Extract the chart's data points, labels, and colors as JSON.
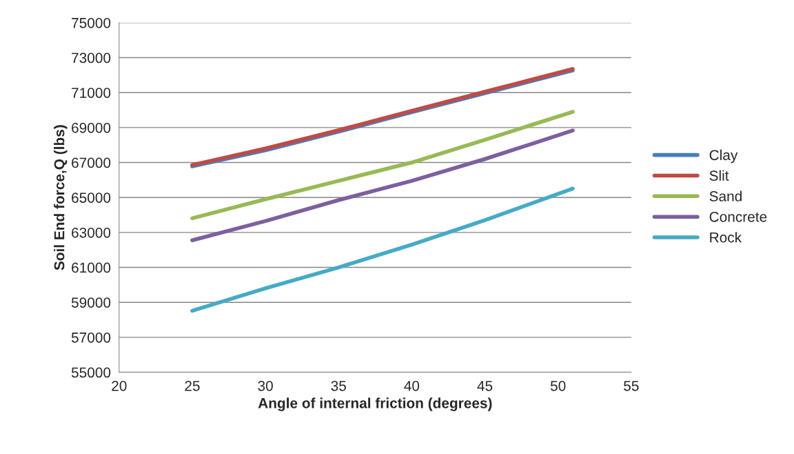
{
  "chart_data": {
    "type": "line",
    "xlabel": "Angle of internal friction (degrees)",
    "ylabel": "Soil End force,Q (lbs)",
    "x": [
      25,
      30,
      35,
      40,
      45,
      51
    ],
    "series": [
      {
        "name": "Clay",
        "color": "#4a7ebb",
        "values": [
          66780,
          67700,
          68770,
          69880,
          70970,
          72270
        ]
      },
      {
        "name": "Slit",
        "color": "#be4b48",
        "values": [
          66860,
          67800,
          68850,
          69960,
          71050,
          72350
        ]
      },
      {
        "name": "Sand",
        "color": "#98b954",
        "values": [
          63810,
          64900,
          65950,
          67000,
          68300,
          69900
        ]
      },
      {
        "name": "Concrete",
        "color": "#7d5fa0",
        "values": [
          62550,
          63650,
          64850,
          65950,
          67200,
          68830
        ]
      },
      {
        "name": "Rock",
        "color": "#46aac5",
        "values": [
          58520,
          59800,
          61000,
          62300,
          63700,
          65510
        ]
      }
    ],
    "xlim": [
      20,
      55
    ],
    "xticks": [
      20,
      25,
      30,
      35,
      40,
      45,
      50,
      55
    ],
    "ylim": [
      55000,
      75000
    ],
    "yticks": [
      55000,
      57000,
      59000,
      61000,
      63000,
      65000,
      67000,
      69000,
      71000,
      73000,
      75000
    ],
    "grid": "y",
    "legend": "right",
    "marker": "none",
    "line_style": "solid"
  }
}
